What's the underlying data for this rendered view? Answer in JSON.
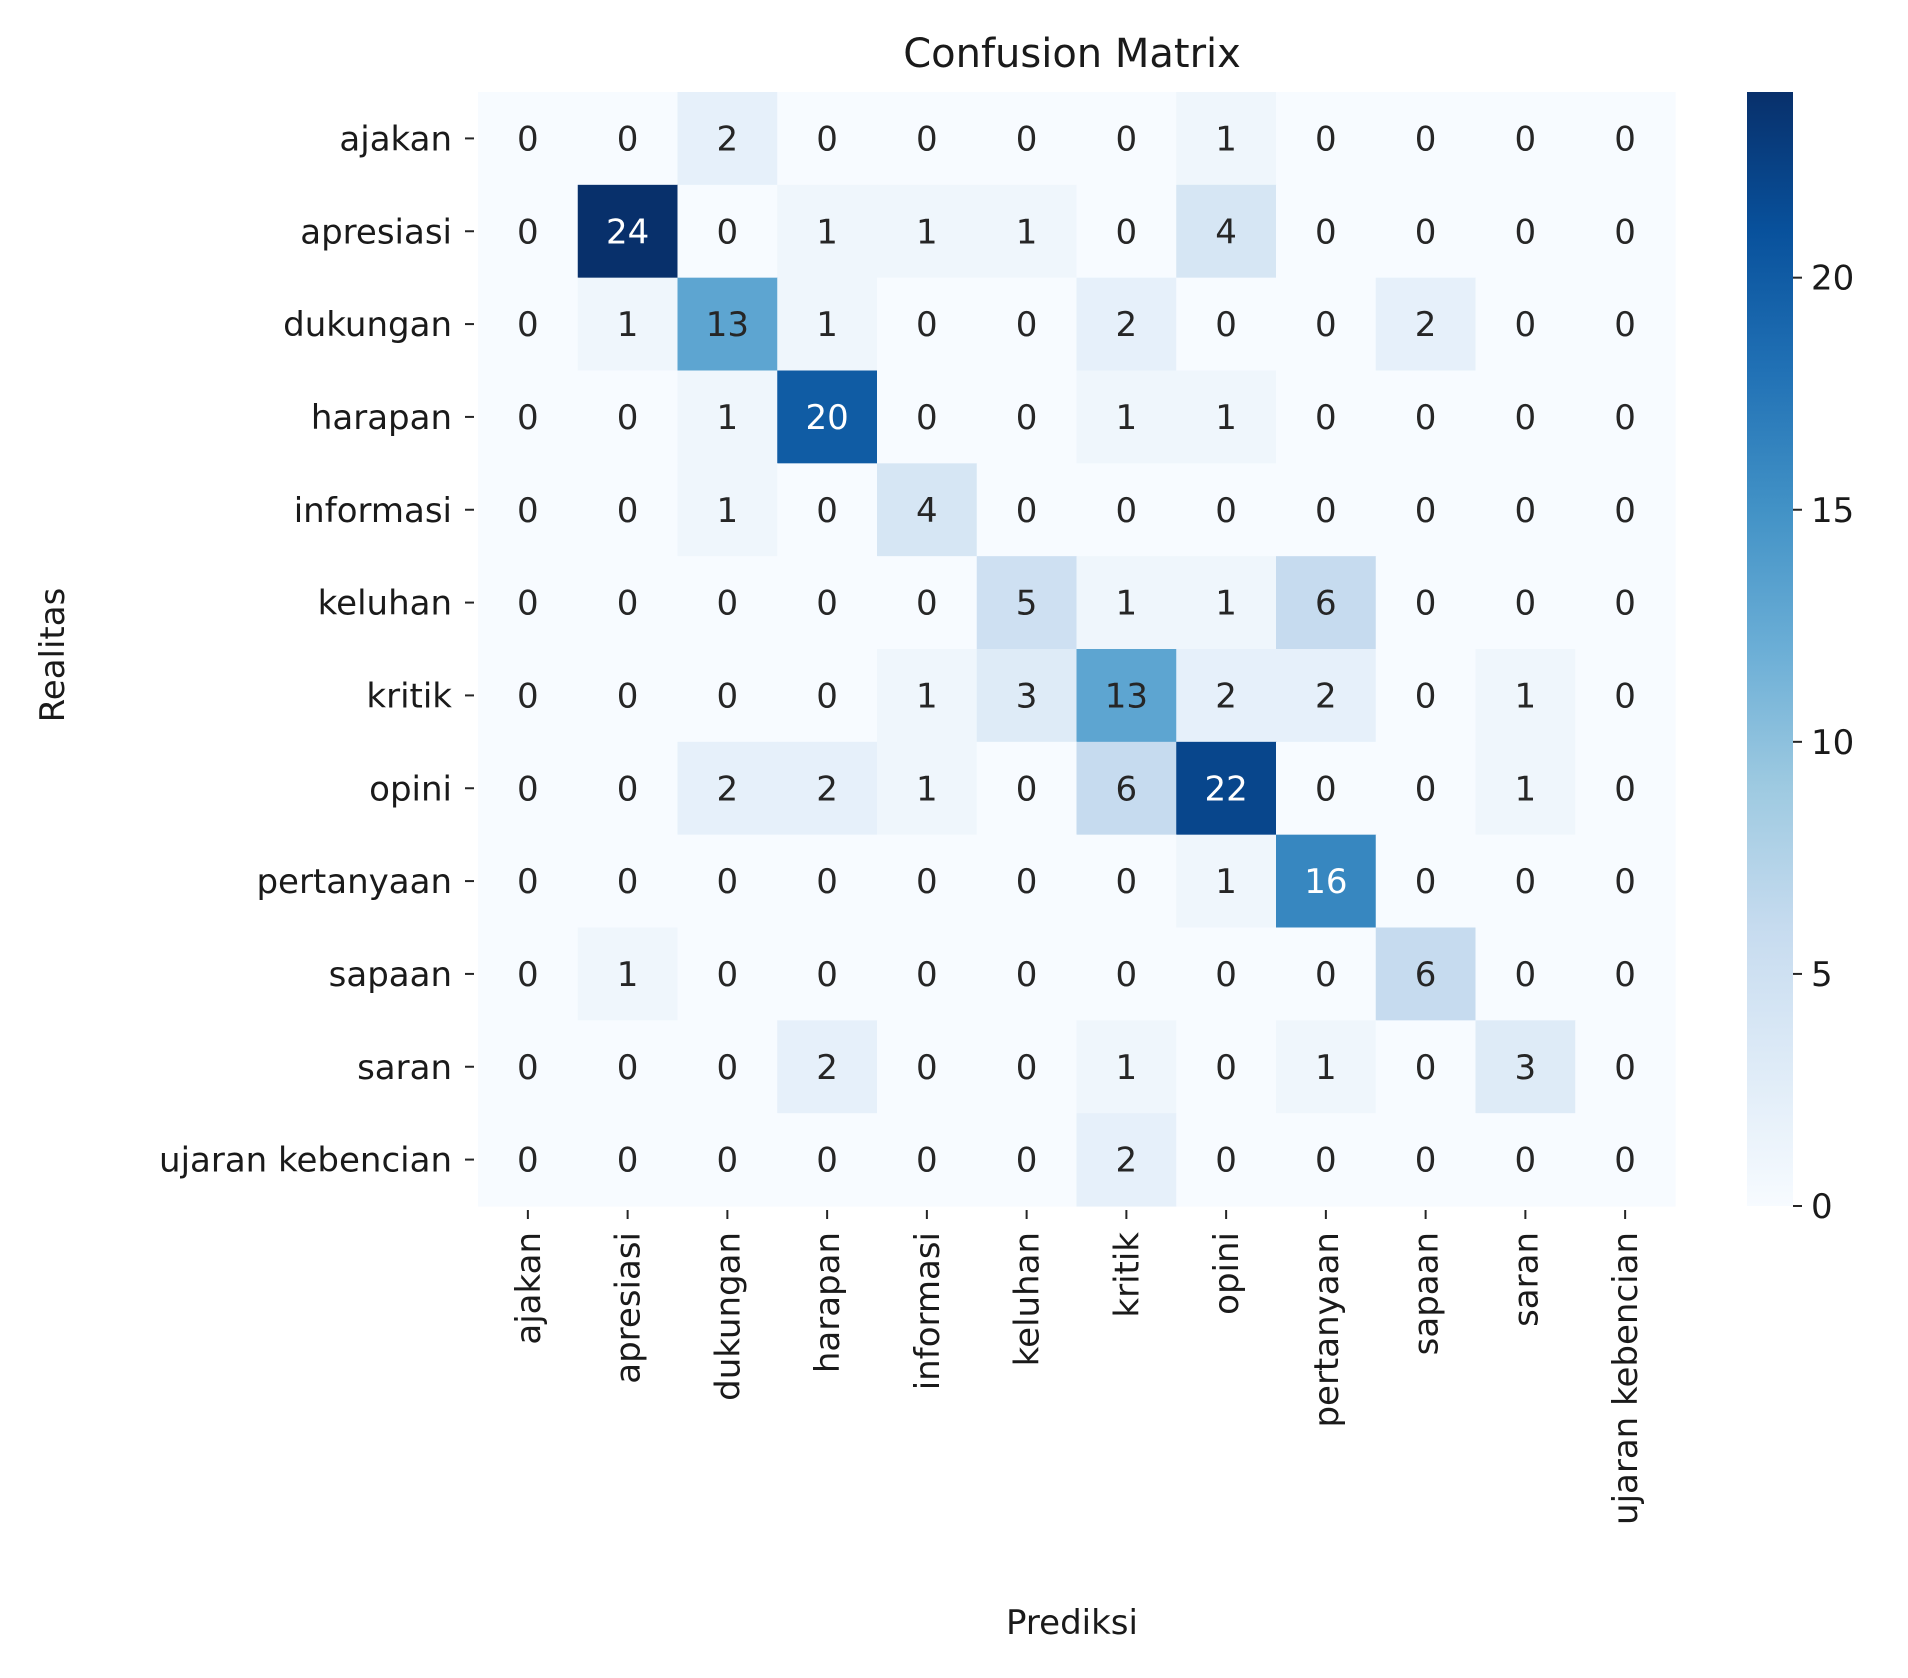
{
  "chart_data": {
    "type": "heatmap",
    "title": "Confusion Matrix",
    "xlabel": "Prediksi",
    "ylabel": "Realitas",
    "x_categories": [
      "ajakan",
      "apresiasi",
      "dukungan",
      "harapan",
      "informasi",
      "keluhan",
      "kritik",
      "opini",
      "pertanyaan",
      "sapaan",
      "saran",
      "ujaran kebencian"
    ],
    "y_categories": [
      "ajakan",
      "apresiasi",
      "dukungan",
      "harapan",
      "informasi",
      "keluhan",
      "kritik",
      "opini",
      "pertanyaan",
      "sapaan",
      "saran",
      "ujaran kebencian"
    ],
    "values": [
      [
        0,
        0,
        2,
        0,
        0,
        0,
        0,
        1,
        0,
        0,
        0,
        0
      ],
      [
        0,
        24,
        0,
        1,
        1,
        1,
        0,
        4,
        0,
        0,
        0,
        0
      ],
      [
        0,
        1,
        13,
        1,
        0,
        0,
        2,
        0,
        0,
        2,
        0,
        0
      ],
      [
        0,
        0,
        1,
        20,
        0,
        0,
        1,
        1,
        0,
        0,
        0,
        0
      ],
      [
        0,
        0,
        1,
        0,
        4,
        0,
        0,
        0,
        0,
        0,
        0,
        0
      ],
      [
        0,
        0,
        0,
        0,
        0,
        5,
        1,
        1,
        6,
        0,
        0,
        0
      ],
      [
        0,
        0,
        0,
        0,
        1,
        3,
        13,
        2,
        2,
        0,
        1,
        0
      ],
      [
        0,
        0,
        2,
        2,
        1,
        0,
        6,
        22,
        0,
        0,
        1,
        0
      ],
      [
        0,
        0,
        0,
        0,
        0,
        0,
        0,
        1,
        16,
        0,
        0,
        0
      ],
      [
        0,
        1,
        0,
        0,
        0,
        0,
        0,
        0,
        0,
        6,
        0,
        0
      ],
      [
        0,
        0,
        0,
        2,
        0,
        0,
        1,
        0,
        1,
        0,
        3,
        0
      ],
      [
        0,
        0,
        0,
        0,
        0,
        0,
        2,
        0,
        0,
        0,
        0,
        0
      ]
    ],
    "colorbar": {
      "colormap": "Blues",
      "range": [
        0,
        24
      ],
      "ticks": [
        0,
        5,
        10,
        15,
        20
      ]
    },
    "grid": false,
    "legend": "colorbar-right"
  }
}
